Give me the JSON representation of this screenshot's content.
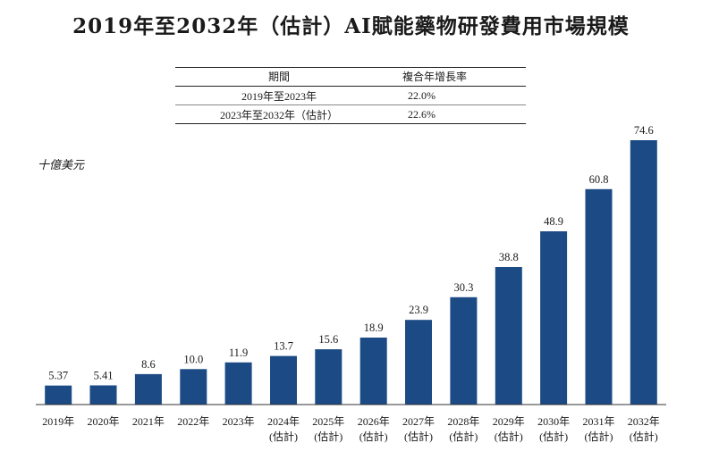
{
  "title": "2019年至2032年（估計）AI賦能藥物研發費用市場規模",
  "cagr_table": {
    "headers": [
      "期間",
      "複合年增長率"
    ],
    "rows": [
      [
        "2019年至2023年",
        "22.0%"
      ],
      [
        "2023年至2032年（估計）",
        "22.6%"
      ]
    ]
  },
  "chart_data": {
    "type": "bar",
    "title": "2019年至2032年（估計）AI賦能藥物研發費用市場規模",
    "ylabel": "十億美元",
    "xlabel": "",
    "categories": [
      [
        "2019年"
      ],
      [
        "2020年"
      ],
      [
        "2021年"
      ],
      [
        "2022年"
      ],
      [
        "2023年"
      ],
      [
        "2024年",
        "(估計)"
      ],
      [
        "2025年",
        "(估計)"
      ],
      [
        "2026年",
        "(估計)"
      ],
      [
        "2027年",
        "(估計)"
      ],
      [
        "2028年",
        "(估計)"
      ],
      [
        "2029年",
        "(估計)"
      ],
      [
        "2030年",
        "(估計)"
      ],
      [
        "2031年",
        "(估計)"
      ],
      [
        "2032年",
        "(估計)"
      ]
    ],
    "values": [
      5.37,
      5.41,
      8.6,
      10.0,
      11.9,
      13.7,
      15.6,
      18.9,
      23.9,
      30.3,
      38.8,
      48.9,
      60.8,
      74.6
    ],
    "value_labels": [
      "5.37",
      "5.41",
      "8.6",
      "10.0",
      "11.9",
      "13.7",
      "15.6",
      "18.9",
      "23.9",
      "30.3",
      "38.8",
      "48.9",
      "60.8",
      "74.6"
    ],
    "bar_color": "#1b4a85",
    "ylim": [
      0,
      74.6
    ],
    "grid": false
  }
}
